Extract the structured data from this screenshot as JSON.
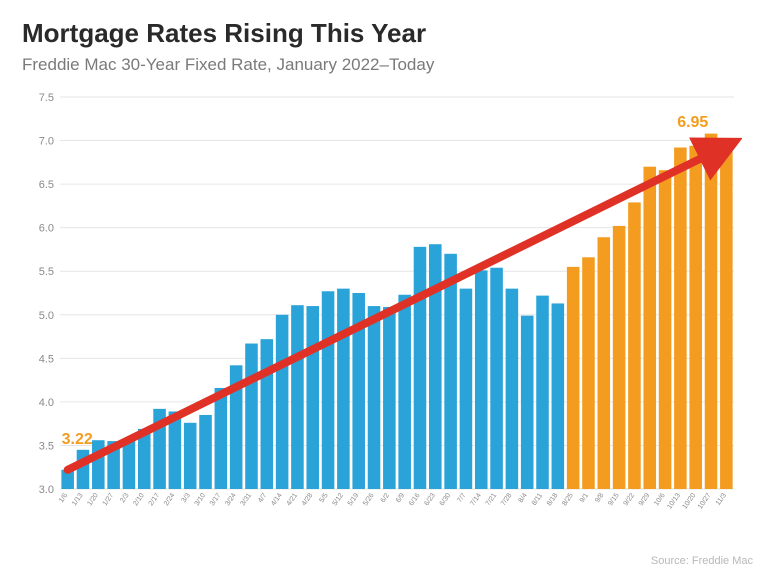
{
  "header": {
    "title": "Mortgage Rates Rising This Year",
    "subtitle": "Freddie Mac 30-Year Fixed Rate, January 2022–Today"
  },
  "footer": {
    "source": "Source: Freddie Mac"
  },
  "chart": {
    "type": "bar",
    "ylim": [
      3.0,
      7.5
    ],
    "ytick_step": 0.5,
    "yticks": [
      "3.0",
      "3.5",
      "4.0",
      "4.5",
      "5.0",
      "5.5",
      "6.0",
      "6.5",
      "7.0",
      "7.5"
    ],
    "grid_color": "#e6e6e6",
    "background_color": "#ffffff",
    "bar_gap_ratio": 0.18,
    "colors": {
      "blue": "#2aa3d9",
      "orange": "#f39c1f",
      "arrow": "#e03126",
      "text": "#7a7a7a"
    },
    "labels": {
      "start": {
        "text": "3.22",
        "color": "#f39c1f",
        "fontsize": 16,
        "fontweight": 700
      },
      "end": {
        "text": "6.95",
        "color": "#f39c1f",
        "fontsize": 16,
        "fontweight": 700
      }
    },
    "data": [
      {
        "x": "1/6",
        "y": 3.22,
        "series": "blue"
      },
      {
        "x": "1/13",
        "y": 3.45,
        "series": "blue"
      },
      {
        "x": "1/20",
        "y": 3.56,
        "series": "blue"
      },
      {
        "x": "1/27",
        "y": 3.55,
        "series": "blue"
      },
      {
        "x": "2/3",
        "y": 3.55,
        "series": "blue"
      },
      {
        "x": "2/10",
        "y": 3.69,
        "series": "blue"
      },
      {
        "x": "2/17",
        "y": 3.92,
        "series": "blue"
      },
      {
        "x": "2/24",
        "y": 3.89,
        "series": "blue"
      },
      {
        "x": "3/3",
        "y": 3.76,
        "series": "blue"
      },
      {
        "x": "3/10",
        "y": 3.85,
        "series": "blue"
      },
      {
        "x": "3/17",
        "y": 4.16,
        "series": "blue"
      },
      {
        "x": "3/24",
        "y": 4.42,
        "series": "blue"
      },
      {
        "x": "3/31",
        "y": 4.67,
        "series": "blue"
      },
      {
        "x": "4/7",
        "y": 4.72,
        "series": "blue"
      },
      {
        "x": "4/14",
        "y": 5.0,
        "series": "blue"
      },
      {
        "x": "4/21",
        "y": 5.11,
        "series": "blue"
      },
      {
        "x": "4/28",
        "y": 5.1,
        "series": "blue"
      },
      {
        "x": "5/5",
        "y": 5.27,
        "series": "blue"
      },
      {
        "x": "5/12",
        "y": 5.3,
        "series": "blue"
      },
      {
        "x": "5/19",
        "y": 5.25,
        "series": "blue"
      },
      {
        "x": "5/26",
        "y": 5.1,
        "series": "blue"
      },
      {
        "x": "6/2",
        "y": 5.09,
        "series": "blue"
      },
      {
        "x": "6/9",
        "y": 5.23,
        "series": "blue"
      },
      {
        "x": "6/16",
        "y": 5.78,
        "series": "blue"
      },
      {
        "x": "6/23",
        "y": 5.81,
        "series": "blue"
      },
      {
        "x": "6/30",
        "y": 5.7,
        "series": "blue"
      },
      {
        "x": "7/7",
        "y": 5.3,
        "series": "blue"
      },
      {
        "x": "7/14",
        "y": 5.51,
        "series": "blue"
      },
      {
        "x": "7/21",
        "y": 5.54,
        "series": "blue"
      },
      {
        "x": "7/28",
        "y": 5.3,
        "series": "blue"
      },
      {
        "x": "8/4",
        "y": 4.99,
        "series": "blue"
      },
      {
        "x": "8/11",
        "y": 5.22,
        "series": "blue"
      },
      {
        "x": "8/18",
        "y": 5.13,
        "series": "blue"
      },
      {
        "x": "8/25",
        "y": 5.55,
        "series": "orange"
      },
      {
        "x": "9/1",
        "y": 5.66,
        "series": "orange"
      },
      {
        "x": "9/8",
        "y": 5.89,
        "series": "orange"
      },
      {
        "x": "9/15",
        "y": 6.02,
        "series": "orange"
      },
      {
        "x": "9/22",
        "y": 6.29,
        "series": "orange"
      },
      {
        "x": "9/29",
        "y": 6.7,
        "series": "orange"
      },
      {
        "x": "10/6",
        "y": 6.66,
        "series": "orange"
      },
      {
        "x": "10/13",
        "y": 6.92,
        "series": "orange"
      },
      {
        "x": "10/20",
        "y": 6.94,
        "series": "orange"
      },
      {
        "x": "10/27",
        "y": 7.08,
        "series": "orange"
      },
      {
        "x": "11/3",
        "y": 6.95,
        "series": "orange"
      }
    ],
    "arrow": {
      "from_index": 0,
      "to_index": 43,
      "width": 8
    }
  }
}
